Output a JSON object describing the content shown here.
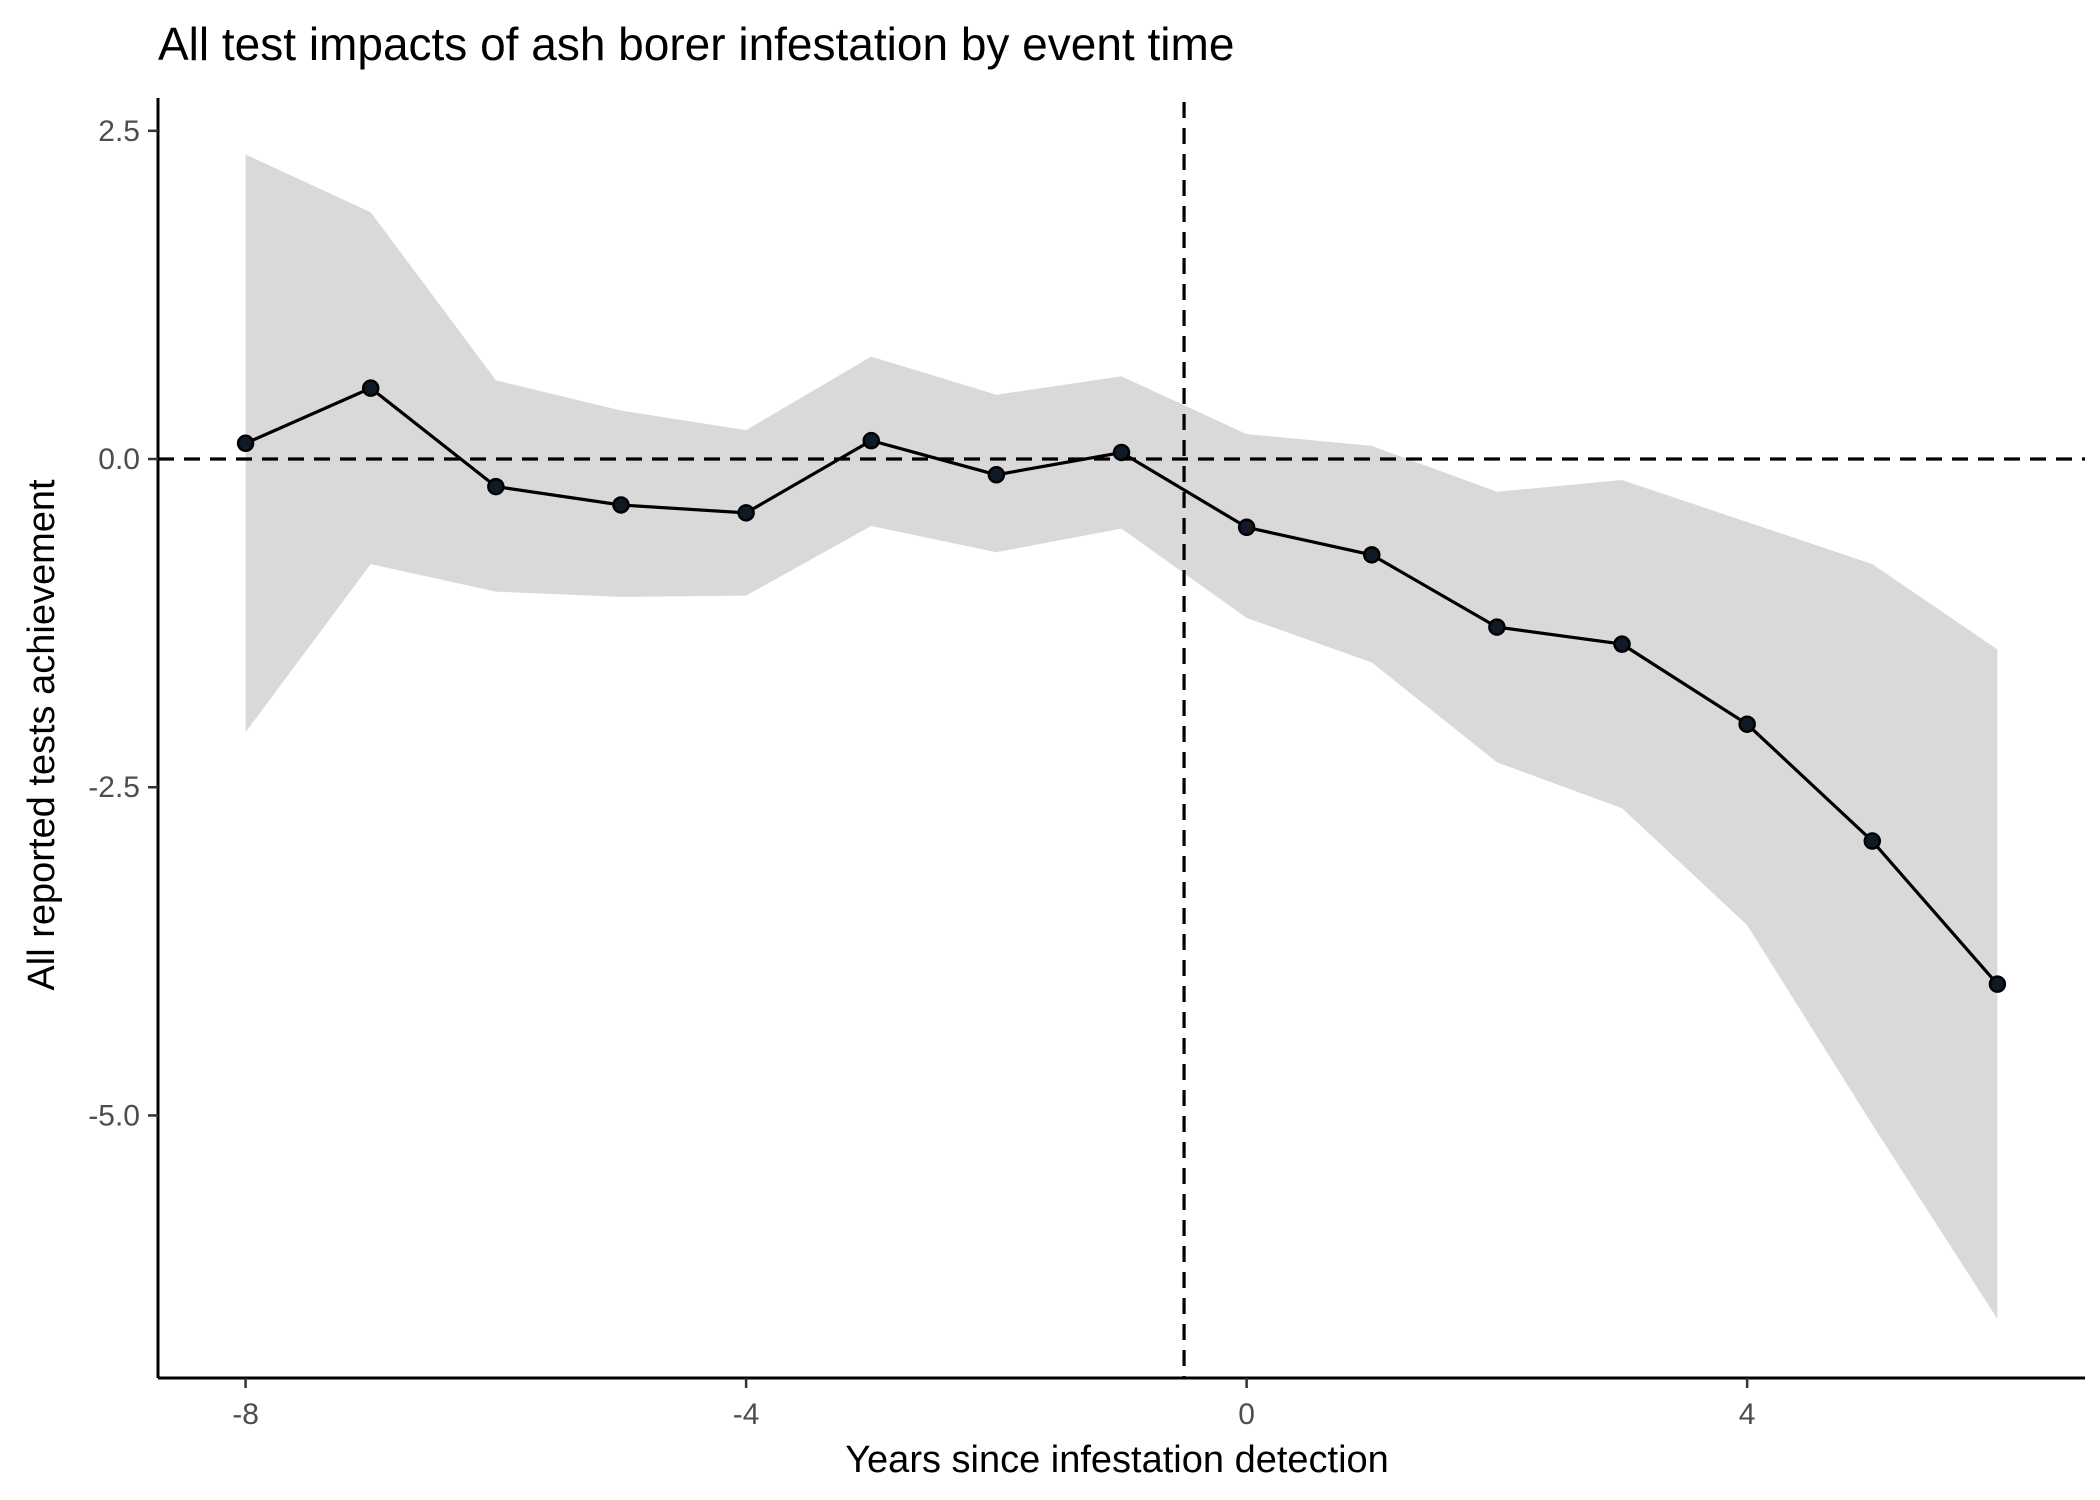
{
  "chart_data": {
    "type": "line",
    "title": "All test impacts of ash borer infestation by event time",
    "xlabel": "Years since infestation detection",
    "ylabel": "All reported tests achievement",
    "xlim": [
      -8.7,
      6.7
    ],
    "ylim": [
      -7.0,
      2.75
    ],
    "x_ticks": [
      -8,
      -4,
      0,
      4
    ],
    "x_tick_labels": [
      "-8",
      "-4",
      "0",
      "4"
    ],
    "y_ticks": [
      2.5,
      0.0,
      -2.5,
      -5.0
    ],
    "y_tick_labels": [
      "2.5",
      "0.0",
      "-2.5",
      "-5.0"
    ],
    "reference_lines": {
      "horizontal_y": 0.0,
      "vertical_x": -0.5
    },
    "grid": false,
    "legend": "none",
    "series": [
      {
        "x": [
          -8,
          -7,
          -6,
          -5,
          -4,
          -3,
          -2,
          -1,
          0,
          1,
          2,
          3,
          4,
          5,
          6
        ],
        "values": [
          0.12,
          0.54,
          -0.21,
          -0.35,
          -0.41,
          0.14,
          -0.12,
          0.05,
          -0.52,
          -0.73,
          -1.28,
          -1.41,
          -2.02,
          -2.91,
          -4.0
        ],
        "lower": [
          -2.08,
          -0.8,
          -1.01,
          -1.05,
          -1.04,
          -0.51,
          -0.71,
          -0.53,
          -1.21,
          -1.55,
          -2.31,
          -2.66,
          -3.55,
          -5.07,
          -6.55
        ],
        "upper": [
          2.32,
          1.88,
          0.6,
          0.37,
          0.22,
          0.78,
          0.49,
          0.63,
          0.19,
          0.1,
          -0.25,
          -0.16,
          -0.48,
          -0.8,
          -1.45
        ]
      }
    ],
    "colors": {
      "band": "#d9d9d9",
      "line": "#000000",
      "point": "#0e1a25"
    }
  }
}
